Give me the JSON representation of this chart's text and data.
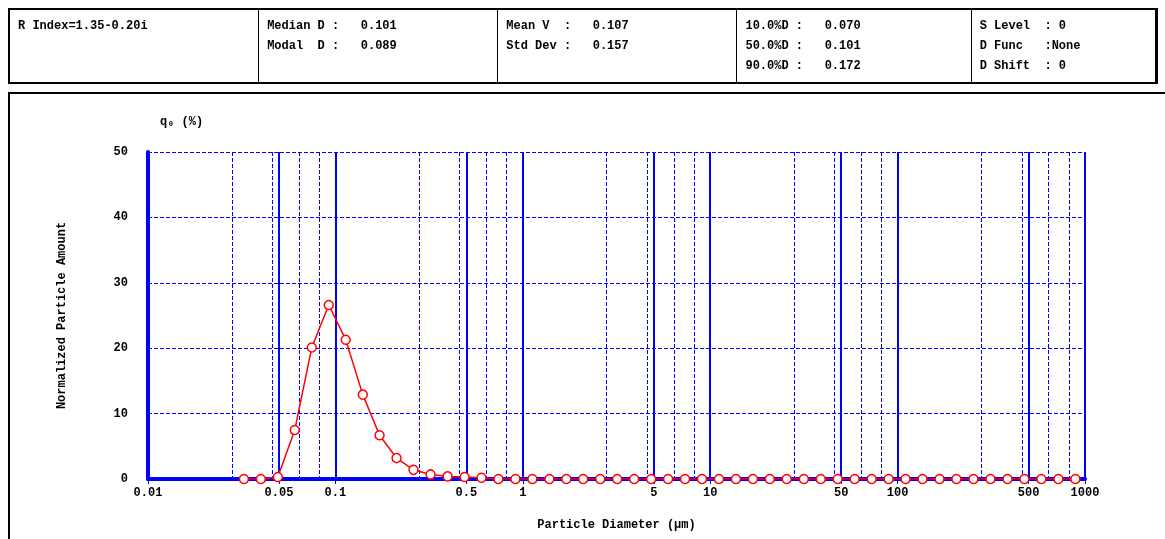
{
  "chart_data": {
    "type": "line",
    "xlabel": "Particle Diameter (μm)",
    "ylabel": "Normalized Particle Amount",
    "annotations": [
      "R Index=1.35-0.20i",
      "Median D :   0.101",
      "Modal  D :   0.089",
      "Mean V  :   0.107",
      "Std Dev :   0.157",
      "10.0%D :   0.070",
      "50.0%D :   0.101",
      "90.0%D :   0.172",
      "S Level  : 0",
      "D Func   :None",
      "D Shift  : 0",
      "q₀ (%)"
    ],
    "series": [
      {
        "color": "#ff0000",
        "x": [
          0.0325,
          0.04,
          0.0493,
          0.0607,
          0.0748,
          0.0922,
          0.1135,
          0.14,
          0.172,
          0.212,
          0.261,
          0.322,
          0.397,
          0.489,
          0.602,
          0.741,
          0.913,
          1.125,
          1.386,
          1.707,
          2.1,
          2.59,
          3.19,
          3.93,
          4.84,
          5.96,
          7.34,
          9.04,
          11.14,
          13.72,
          16.9,
          20.8,
          25.6,
          31.6,
          38.9,
          47.9,
          59.0,
          72.7,
          89.6,
          110.3,
          135.9,
          167.4,
          206,
          254,
          313,
          386,
          475,
          585,
          721,
          888
        ],
        "values": [
          0,
          0,
          0.3,
          7.5,
          20.1,
          26.6,
          21.3,
          12.9,
          6.7,
          3.2,
          1.4,
          0.7,
          0.4,
          0.3,
          0.2,
          0,
          0,
          0,
          0,
          0,
          0,
          0,
          0,
          0,
          0,
          0,
          0,
          0,
          0,
          0,
          0,
          0,
          0,
          0,
          0,
          0,
          0,
          0,
          0,
          0,
          0,
          0,
          0,
          0,
          0,
          0,
          0,
          0,
          0,
          0
        ]
      }
    ],
    "log": "x",
    "xlim": [
      0.01,
      1000
    ],
    "xticks": [
      0.01,
      0.05,
      0.1,
      0.5,
      1,
      5,
      10,
      50,
      100,
      500,
      1000
    ],
    "ylim": [
      0,
      50
    ],
    "yticks": [
      0,
      10,
      20,
      30,
      40,
      50
    ],
    "grid": true,
    "marker": "circle",
    "line_style": "solid"
  }
}
